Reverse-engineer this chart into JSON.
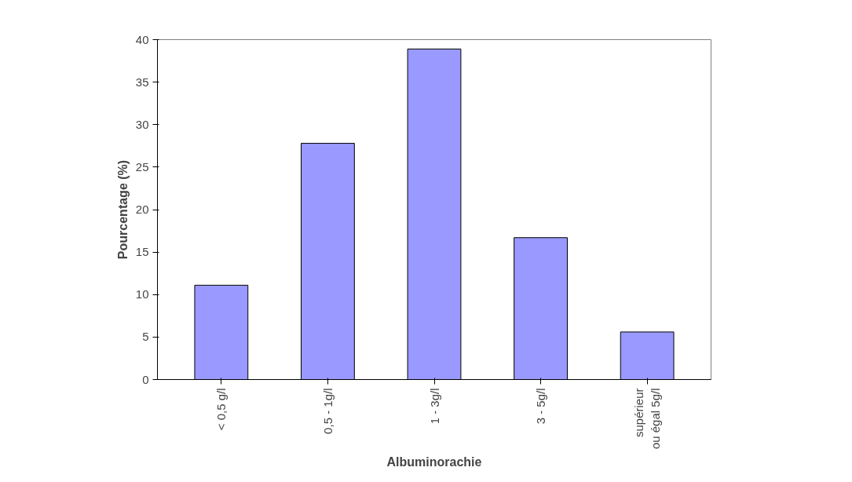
{
  "chart_data": {
    "type": "bar",
    "xlabel": "Albuminorachie",
    "ylabel": "Pourcentage (%)",
    "categories": [
      "< 0,5 g/l",
      "0,5 - 1g/l",
      "1 - 3g/l",
      "3 - 5g/l",
      "supérieur\nou égal 5g/l"
    ],
    "values": [
      11.1,
      27.8,
      38.9,
      16.7,
      5.6
    ],
    "color": "#9999ff",
    "ylim": [
      0,
      40
    ],
    "yticks": [
      0,
      5,
      10,
      15,
      20,
      25,
      30,
      35,
      40
    ],
    "grid": false
  }
}
